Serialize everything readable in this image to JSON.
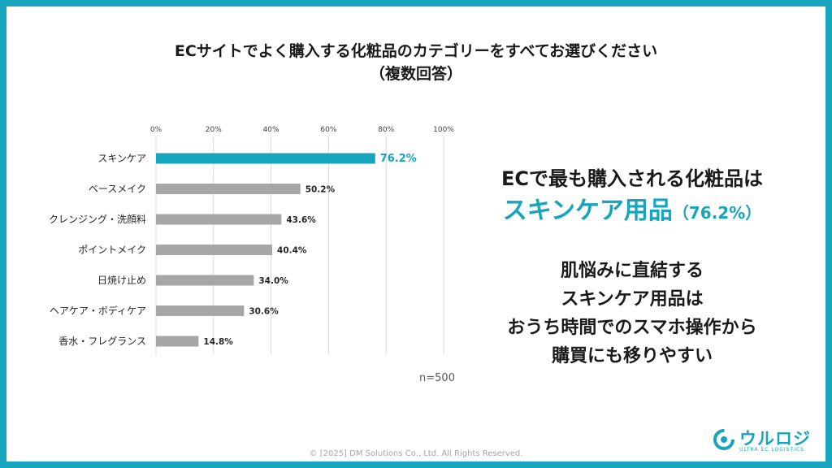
{
  "title_line1": "ECサイトでよく購入する化粧品のカテゴリーをすべてお選びください",
  "title_line2": "（複数回答）",
  "chart_data": {
    "type": "bar",
    "orientation": "horizontal",
    "categories": [
      "スキンケア",
      "ベースメイク",
      "クレンジング・洗顔料",
      "ポイントメイク",
      "日焼け止め",
      "ヘアケア・ボディケア",
      "香水・フレグランス"
    ],
    "values": [
      76.2,
      50.2,
      43.6,
      40.4,
      34.0,
      30.6,
      14.8
    ],
    "value_labels": [
      "76.2%",
      "50.2%",
      "43.6%",
      "40.4%",
      "34.0%",
      "30.6%",
      "14.8%"
    ],
    "ticks": [
      "0%",
      "20%",
      "40%",
      "60%",
      "80%",
      "100%"
    ],
    "xlim": [
      0,
      100
    ],
    "axis_position": "top",
    "grid": true,
    "highlight_index": 0,
    "colors": {
      "highlight": "#17a4bd",
      "bar": "#a6a6a6"
    },
    "note": "n=500"
  },
  "headline": {
    "line1": "ECで最も購入される化粧品は",
    "line2_main": "スキンケア用品",
    "line2_pct": "（76.2%）"
  },
  "body_lines": [
    "肌悩みに直結する",
    "スキンケア用品は",
    "おうち時間でのスマホ操作から",
    "購買にも移りやすい"
  ],
  "copyright": "© [2025] DM Solutions Co., Ltd. All Rights Reserved.",
  "logo": {
    "text": "ウルロジ",
    "sub": "ULTRA EC LOGISTICS"
  },
  "colors": {
    "accent": "#17a4bd",
    "frame": "#17a4bd"
  }
}
